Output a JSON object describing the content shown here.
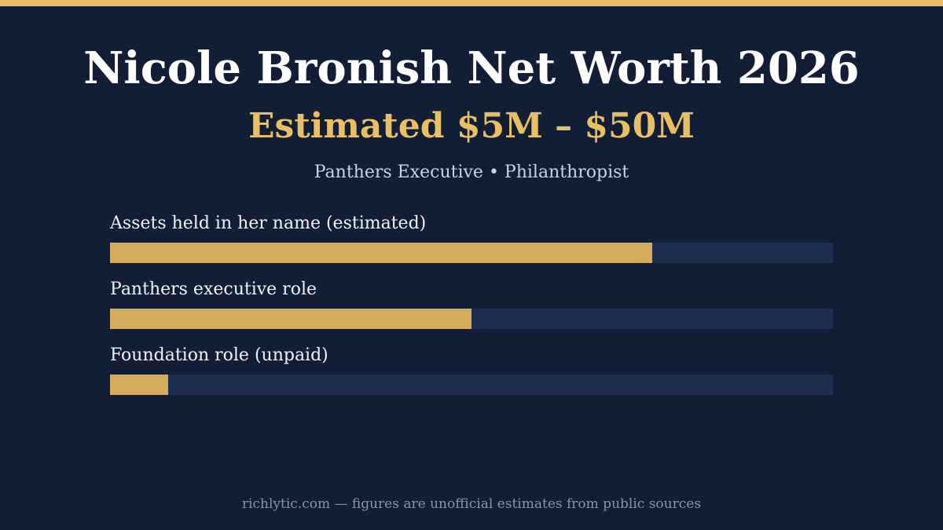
{
  "header": {
    "title": "Nicole Bronish Net Worth 2026",
    "estimate": "Estimated $5M – $50M",
    "tagline": "Panthers Executive • Philanthropist"
  },
  "chart_data": {
    "type": "bar",
    "orientation": "horizontal",
    "categories": [
      "Assets held in her name (estimated)",
      "Panthers executive role",
      "Foundation role (unpaid)"
    ],
    "values": [
      0.75,
      0.5,
      0.08
    ],
    "xlim": [
      0,
      1
    ],
    "grid": false
  },
  "footer": {
    "note": "richlytic.com — figures are unofficial estimates from public sources"
  },
  "colors": {
    "background": "#121d36",
    "accent": "#e5be67",
    "bar_fill": "#d6ac5e",
    "bar_track": "#1e2c4e"
  }
}
